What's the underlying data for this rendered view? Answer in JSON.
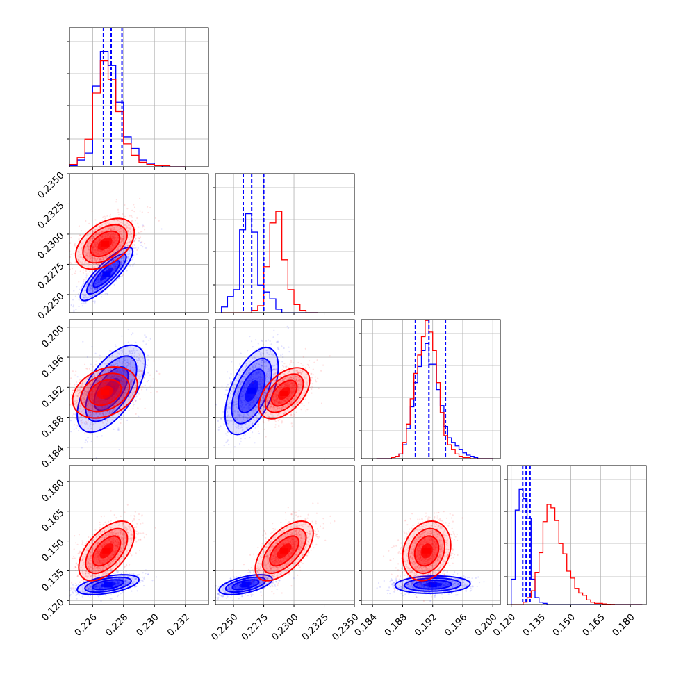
{
  "chart_data": {
    "type": "corner",
    "grid": true,
    "series": [
      {
        "name": "",
        "color": "#0000ff"
      },
      {
        "name": "",
        "color": "#ff0000"
      }
    ],
    "parameters": [
      {
        "index": 0,
        "range": [
          0.2245,
          0.2335
        ],
        "ticks": [
          0.226,
          0.228,
          0.23,
          0.232
        ],
        "tick_labels": [
          "0.226",
          "0.228",
          "0.230",
          "0.232"
        ]
      },
      {
        "index": 1,
        "range": [
          0.2235,
          0.235
        ],
        "ticks": [
          0.225,
          0.2275,
          0.23,
          0.2325,
          0.235
        ],
        "tick_labels": [
          "0.2250",
          "0.2275",
          "0.2300",
          "0.2325",
          "0.2350"
        ]
      },
      {
        "index": 2,
        "range": [
          0.1825,
          0.201
        ],
        "ticks": [
          0.184,
          0.188,
          0.192,
          0.196,
          0.2
        ],
        "tick_labels": [
          "0.184",
          "0.188",
          "0.192",
          "0.196",
          "0.200"
        ]
      },
      {
        "index": 3,
        "range": [
          0.118,
          0.188
        ],
        "ticks": [
          0.12,
          0.135,
          0.15,
          0.165,
          0.18
        ],
        "tick_labels": [
          "0.120",
          "0.135",
          "0.150",
          "0.165",
          "0.180"
        ]
      }
    ],
    "histograms": [
      {
        "param": 0,
        "bin_edges": [
          0.2245,
          0.225,
          0.2255,
          0.226,
          0.2265,
          0.227,
          0.2275,
          0.228,
          0.2285,
          0.229,
          0.2295,
          0.23,
          0.2305,
          0.231,
          0.2315,
          0.232
        ],
        "counts": [
          [
            0.01,
            0.06,
            0.12,
            0.7,
            1.0,
            0.88,
            0.56,
            0.26,
            0.16,
            0.06,
            0.03,
            0.01,
            0.0,
            0.0,
            0.0
          ],
          [
            0.02,
            0.08,
            0.24,
            0.64,
            0.92,
            0.76,
            0.48,
            0.2,
            0.1,
            0.04,
            0.02,
            0.01,
            0.01,
            0.0,
            0.0
          ]
        ],
        "quantiles": [
          [
            0.2267,
            0.2272,
            0.2279
          ],
          []
        ]
      },
      {
        "param": 1,
        "bin_edges": [
          0.224,
          0.2245,
          0.225,
          0.2255,
          0.226,
          0.2265,
          0.227,
          0.2275,
          0.228,
          0.2285,
          0.229,
          0.2295,
          0.23,
          0.2305,
          0.231,
          0.2315,
          0.232
        ],
        "counts": [
          [
            0.05,
            0.14,
            0.2,
            0.72,
            0.86,
            0.7,
            0.24,
            0.18,
            0.12,
            0.03,
            0.0,
            0.0,
            0.0,
            0.0,
            0.0,
            0.0
          ],
          [
            0.0,
            0.0,
            0.0,
            0.0,
            0.0,
            0.02,
            0.06,
            0.4,
            0.78,
            0.88,
            0.46,
            0.2,
            0.07,
            0.02,
            0.0,
            0.0
          ]
        ],
        "quantiles": [
          [
            0.2258,
            0.2265,
            0.2275
          ],
          []
        ]
      },
      {
        "param": 2,
        "bin_edges": [
          0.1845,
          0.185,
          0.1855,
          0.186,
          0.1865,
          0.187,
          0.1875,
          0.188,
          0.1885,
          0.189,
          0.1895,
          0.19,
          0.1905,
          0.191,
          0.1915,
          0.192,
          0.1925,
          0.193,
          0.1935,
          0.194,
          0.1945,
          0.195,
          0.1955,
          0.196,
          0.1965,
          0.197,
          0.1975,
          0.198,
          0.1985,
          0.199,
          0.1995,
          0.2
        ],
        "counts": [
          [
            0.0,
            0.0,
            0.0,
            0.0,
            0.01,
            0.02,
            0.04,
            0.12,
            0.26,
            0.45,
            0.66,
            0.8,
            0.94,
            1.0,
            0.82,
            0.82,
            0.6,
            0.46,
            0.28,
            0.18,
            0.14,
            0.11,
            0.08,
            0.05,
            0.03,
            0.02,
            0.01,
            0.0,
            0.0,
            0.0,
            0.0
          ],
          [
            0.0,
            0.0,
            0.0,
            0.0,
            0.01,
            0.02,
            0.04,
            0.14,
            0.3,
            0.52,
            0.74,
            0.9,
            1.06,
            1.2,
            1.1,
            0.94,
            0.66,
            0.4,
            0.2,
            0.12,
            0.08,
            0.04,
            0.02,
            0.01,
            0.01,
            0.0,
            0.0,
            0.0,
            0.0,
            0.0,
            0.0
          ]
        ],
        "quantiles": [
          [
            0.1897,
            0.1915,
            0.1937
          ],
          []
        ]
      },
      {
        "param": 3,
        "bin_edges": [
          0.12,
          0.122,
          0.124,
          0.126,
          0.128,
          0.13,
          0.132,
          0.134,
          0.136,
          0.138,
          0.14,
          0.142,
          0.144,
          0.146,
          0.148,
          0.15,
          0.152,
          0.154,
          0.156,
          0.158,
          0.16,
          0.162,
          0.164,
          0.166,
          0.168,
          0.17,
          0.172,
          0.174,
          0.176,
          0.178,
          0.18,
          0.182,
          0.184,
          0.186
        ],
        "counts": [
          [
            0.22,
            0.82,
            1.0,
            0.92,
            0.75,
            0.22,
            0.06,
            0.02,
            0.01,
            0.0,
            0.0,
            0.0,
            0.0,
            0.0,
            0.0,
            0.0,
            0.0,
            0.0,
            0.0,
            0.0,
            0.0,
            0.0,
            0.0,
            0.0,
            0.0,
            0.0,
            0.0,
            0.0,
            0.0,
            0.0,
            0.0,
            0.0,
            0.0
          ],
          [
            0.0,
            0.0,
            0.0,
            0.02,
            0.06,
            0.12,
            0.28,
            0.45,
            0.72,
            0.87,
            0.84,
            0.73,
            0.53,
            0.44,
            0.29,
            0.23,
            0.14,
            0.1,
            0.08,
            0.04,
            0.02,
            0.01,
            0.01,
            0.005,
            0.002,
            0.001,
            0.0,
            0.0,
            0.0,
            0.0,
            0.0,
            0.0,
            0.0
          ]
        ],
        "quantiles": [
          [
            0.1258,
            0.1275,
            0.1295
          ],
          []
        ]
      }
    ],
    "distributions_2d": [
      {
        "params": [
          0,
          1
        ],
        "series": [
          {
            "mean": [
              0.2269,
              0.2267
            ],
            "sd": [
              0.00085,
              0.0011
            ],
            "rho": 0.85,
            "count": 1000
          },
          {
            "mean": [
              0.2268,
              0.2292
            ],
            "sd": [
              0.00095,
              0.00105
            ],
            "rho": 0.45,
            "count": 1200
          }
        ]
      },
      {
        "params": [
          0,
          2
        ],
        "series": [
          {
            "mean": [
              0.2272,
              0.1918
            ],
            "sd": [
              0.0011,
              0.0029
            ],
            "rho": 0.6,
            "count": 900
          },
          {
            "mean": [
              0.2268,
              0.1913
            ],
            "sd": [
              0.00105,
              0.0017
            ],
            "rho": 0.3,
            "count": 1100
          }
        ]
      },
      {
        "params": [
          1,
          2
        ],
        "series": [
          {
            "mean": [
              0.2265,
              0.1915
            ],
            "sd": [
              0.0011,
              0.0029
            ],
            "rho": 0.55,
            "count": 1000
          },
          {
            "mean": [
              0.2292,
              0.1912
            ],
            "sd": [
              0.00105,
              0.0017
            ],
            "rho": 0.5,
            "count": 1100
          }
        ]
      },
      {
        "params": [
          0,
          3
        ],
        "series": [
          {
            "mean": [
              0.227,
              0.128
            ],
            "sd": [
              0.001,
              0.0025
            ],
            "rho": 0.5,
            "count": 900
          },
          {
            "mean": [
              0.2269,
              0.145
            ],
            "sd": [
              0.0009,
              0.0075
            ],
            "rho": 0.55,
            "count": 1200
          }
        ]
      },
      {
        "params": [
          1,
          3
        ],
        "series": [
          {
            "mean": [
              0.226,
              0.128
            ],
            "sd": [
              0.0011,
              0.0025
            ],
            "rho": 0.55,
            "count": 900
          },
          {
            "mean": [
              0.2292,
              0.145
            ],
            "sd": [
              0.0012,
              0.0075
            ],
            "rho": 0.6,
            "count": 1200
          }
        ]
      },
      {
        "params": [
          2,
          3
        ],
        "series": [
          {
            "mean": [
              0.192,
              0.128
            ],
            "sd": [
              0.0025,
              0.0022
            ],
            "rho": 0.1,
            "count": 900
          },
          {
            "mean": [
              0.1912,
              0.145
            ],
            "sd": [
              0.0016,
              0.0075
            ],
            "rho": 0.2,
            "count": 1200
          }
        ]
      }
    ]
  }
}
